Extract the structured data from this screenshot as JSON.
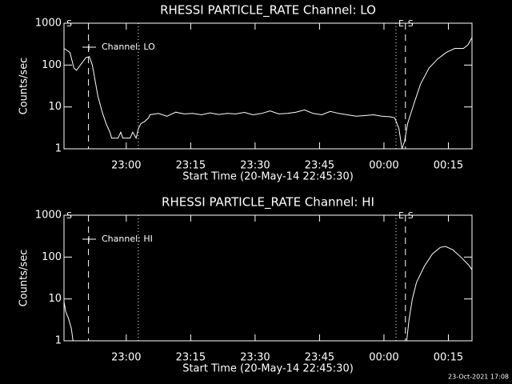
{
  "chart_data": [
    {
      "type": "line",
      "title": "RHESSI PARTICLE_RATE Channel: LO",
      "xlabel": "Start Time (20-May-14 22:45:30)",
      "ylabel": "Counts/sec",
      "log_y": true,
      "legend": "upper left",
      "series": [
        {
          "name": "Channel: LO",
          "color": "#ffffff",
          "x": [
            0,
            1.4,
            2.3,
            2.9,
            3.8,
            5.1,
            5.9,
            6.6,
            7.9,
            8.9,
            9.8,
            10.7,
            11.1,
            12.6,
            13.2,
            13.7,
            15.4,
            16,
            16.8,
            17.3,
            17.9,
            18.8,
            19.7,
            20,
            22,
            24,
            26,
            28,
            30,
            32,
            34,
            36,
            38,
            40,
            42,
            44,
            46,
            48,
            50,
            52,
            54,
            56,
            58,
            60,
            62,
            64,
            66,
            68,
            70,
            72,
            74,
            76,
            77,
            78,
            78.7,
            79.3,
            80,
            81.5,
            83,
            85,
            87,
            89,
            91,
            93,
            94,
            95
          ],
          "values": [
            250,
            200,
            85,
            75,
            100,
            150,
            160,
            100,
            18,
            7.5,
            4,
            2.5,
            1.8,
            1.8,
            2.5,
            1.8,
            1.8,
            2.5,
            1.8,
            3,
            4,
            4.5,
            5.5,
            6.5,
            7,
            6,
            7.5,
            6.8,
            7,
            6.5,
            7.2,
            6.6,
            7,
            6.8,
            7.4,
            6.5,
            7,
            8,
            6.8,
            7,
            7.5,
            8.5,
            7,
            6.5,
            7.8,
            7,
            6.5,
            6,
            6.2,
            6.5,
            6,
            5.8,
            5.5,
            3,
            1,
            1.5,
            4,
            12,
            35,
            85,
            140,
            200,
            250,
            250,
            300,
            450
          ]
        }
      ],
      "xlim": [
        0,
        95
      ],
      "ylim": [
        1,
        1000
      ],
      "xticks": [
        {
          "value": 14.5,
          "label": "23:00"
        },
        {
          "value": 29.5,
          "label": "23:15"
        },
        {
          "value": 44.5,
          "label": "23:30"
        },
        {
          "value": 59.5,
          "label": "23:45"
        },
        {
          "value": 74.5,
          "label": "00:00"
        },
        {
          "value": 89.5,
          "label": "00:15"
        }
      ],
      "yticks": [
        1,
        10,
        100,
        1000
      ],
      "vlines": [
        {
          "x": 5.7,
          "style": "dashed"
        },
        {
          "x": 17.3,
          "style": "dotted"
        },
        {
          "x": 77.3,
          "style": "dotted"
        },
        {
          "x": 79.5,
          "style": "dashed"
        },
        {
          "x": 95,
          "style": "dashdot"
        }
      ],
      "markers": [
        {
          "label": "S",
          "x": 0
        },
        {
          "label": "E",
          "x": 77.3
        },
        {
          "label": "S",
          "x": 79.5
        }
      ]
    },
    {
      "type": "line",
      "title": "RHESSI PARTICLE_RATE Channel: HI",
      "xlabel": "Start Time (20-May-14 22:45:30)",
      "ylabel": "Counts/sec",
      "log_y": true,
      "legend": "upper left",
      "series": [
        {
          "name": "Channel: HI",
          "color": "#ffffff",
          "x": [
            0,
            0.4,
            1,
            1.7,
            2.1,
            40,
            79.8,
            80.3,
            81.1,
            82.1,
            83.9,
            85.8,
            87.6,
            88.8,
            90.5,
            92.4,
            94.2,
            95
          ],
          "values": [
            8.6,
            5,
            3.5,
            2,
            1,
            null,
            1,
            3,
            10,
            25,
            60,
            120,
            170,
            180,
            150,
            100,
            65,
            50
          ]
        }
      ],
      "xlim": [
        0,
        95
      ],
      "ylim": [
        1,
        1000
      ],
      "xticks": [
        {
          "value": 14.5,
          "label": "23:00"
        },
        {
          "value": 29.5,
          "label": "23:15"
        },
        {
          "value": 44.5,
          "label": "23:30"
        },
        {
          "value": 59.5,
          "label": "23:45"
        },
        {
          "value": 74.5,
          "label": "00:00"
        },
        {
          "value": 89.5,
          "label": "00:15"
        }
      ],
      "yticks": [
        1,
        10,
        100,
        1000
      ],
      "vlines": [
        {
          "x": 5.7,
          "style": "dashed"
        },
        {
          "x": 17.3,
          "style": "dotted"
        },
        {
          "x": 77.3,
          "style": "dotted"
        },
        {
          "x": 79.5,
          "style": "dashed"
        },
        {
          "x": 95,
          "style": "dashdot"
        }
      ],
      "markers": [
        {
          "label": "S",
          "x": 0
        },
        {
          "label": "E",
          "x": 77.3
        },
        {
          "label": "S",
          "x": 79.5
        }
      ]
    }
  ],
  "footer": {
    "timestamp": "23-Oct-2021 17:08"
  }
}
